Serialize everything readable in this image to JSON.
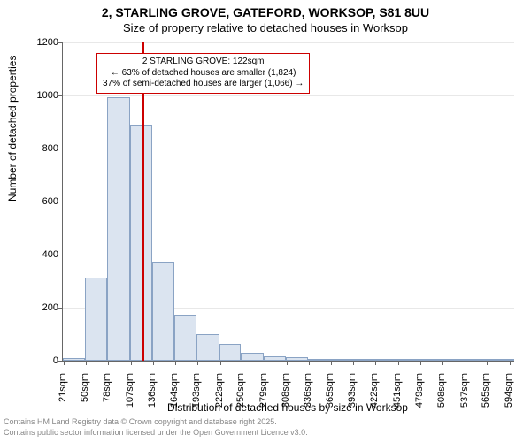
{
  "chart": {
    "type": "histogram",
    "title_main": "2, STARLING GROVE, GATEFORD, WORKSOP, S81 8UU",
    "title_sub": "Size of property relative to detached houses in Worksop",
    "title_fontsize_main": 14,
    "title_fontsize_sub": 13,
    "x_axis_label": "Distribution of detached houses by size in Worksop",
    "y_axis_label": "Number of detached properties",
    "axis_label_fontsize": 12,
    "tick_fontsize": 11,
    "plot_background": "#ffffff",
    "bar_fill": "#dbe4f0",
    "bar_border": "#8aa3c4",
    "axis_color": "#666666",
    "x_ticks": [
      "21sqm",
      "50sqm",
      "78sqm",
      "107sqm",
      "136sqm",
      "164sqm",
      "193sqm",
      "222sqm",
      "250sqm",
      "279sqm",
      "308sqm",
      "336sqm",
      "365sqm",
      "393sqm",
      "422sqm",
      "451sqm",
      "479sqm",
      "508sqm",
      "537sqm",
      "565sqm",
      "594sqm"
    ],
    "x_domain_min": 20,
    "x_domain_max": 600,
    "y_ticks": [
      0,
      200,
      400,
      600,
      800,
      1000,
      1200
    ],
    "y_lim": [
      0,
      1200
    ],
    "bins": [
      {
        "start": 20,
        "end": 48,
        "count": 10
      },
      {
        "start": 48,
        "end": 77,
        "count": 315
      },
      {
        "start": 77,
        "end": 106,
        "count": 995
      },
      {
        "start": 106,
        "end": 135,
        "count": 890
      },
      {
        "start": 135,
        "end": 163,
        "count": 375
      },
      {
        "start": 163,
        "end": 192,
        "count": 175
      },
      {
        "start": 192,
        "end": 221,
        "count": 100
      },
      {
        "start": 221,
        "end": 249,
        "count": 65
      },
      {
        "start": 249,
        "end": 278,
        "count": 30
      },
      {
        "start": 278,
        "end": 307,
        "count": 18
      },
      {
        "start": 307,
        "end": 335,
        "count": 12
      },
      {
        "start": 335,
        "end": 364,
        "count": 8
      },
      {
        "start": 364,
        "end": 392,
        "count": 6
      },
      {
        "start": 392,
        "end": 421,
        "count": 5
      },
      {
        "start": 421,
        "end": 450,
        "count": 4
      },
      {
        "start": 450,
        "end": 478,
        "count": 2
      },
      {
        "start": 478,
        "end": 507,
        "count": 3
      },
      {
        "start": 507,
        "end": 536,
        "count": 2
      },
      {
        "start": 536,
        "end": 564,
        "count": 1
      },
      {
        "start": 564,
        "end": 593,
        "count": 2
      },
      {
        "start": 593,
        "end": 600,
        "count": 1
      }
    ],
    "marker": {
      "value_sqm": 122,
      "color": "#cc0000",
      "line_width": 2
    },
    "annotation": {
      "line1": "2 STARLING GROVE: 122sqm",
      "line2": "← 63% of detached houses are smaller (1,824)",
      "line3": "37% of semi-detached houses are larger (1,066) →",
      "border_color": "#cc0000",
      "background": "#ffffff",
      "fontsize": 10
    },
    "footer1": "Contains HM Land Registry data © Crown copyright and database right 2025.",
    "footer2": "Contains public sector information licensed under the Open Government Licence v3.0.",
    "footer_color": "#888888",
    "footer_fontsize": 9
  }
}
